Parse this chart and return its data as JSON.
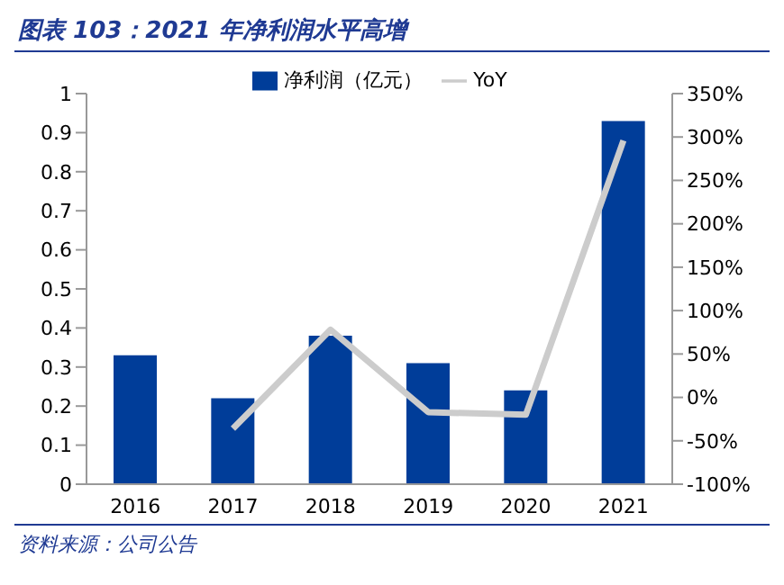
{
  "chart_data": {
    "type": "bar",
    "title": "图表 103：2021 年净利润水平高增",
    "categories": [
      "2016",
      "2017",
      "2018",
      "2019",
      "2020",
      "2021"
    ],
    "series": [
      {
        "name": "净利润（亿元）",
        "color": "#003d99",
        "values": [
          0.33,
          0.22,
          0.38,
          0.31,
          0.24,
          0.93
        ]
      },
      {
        "name": "YoY",
        "type": "line",
        "axis": "y2",
        "color": "#cccccc",
        "values": [
          null,
          -36,
          78,
          -17,
          -20,
          296
        ]
      }
    ],
    "ylim": [
      0,
      1
    ],
    "yticks": [
      0,
      {
        "value": 0.1,
        "label": "0.1"
      },
      {
        "value": 0.2,
        "label": "0.2"
      },
      {
        "value": 0.3,
        "label": "0.3"
      },
      {
        "value": 0.4,
        "label": "0.4"
      },
      {
        "value": 0.5,
        "label": "0.5"
      },
      {
        "value": 0.6,
        "label": "0.6"
      },
      {
        "value": 0.7,
        "label": "0.7"
      },
      {
        "value": 0.8,
        "label": "0.8"
      },
      {
        "value": 0.9,
        "label": "0.9"
      },
      1
    ],
    "y2lim": [
      -100,
      350
    ],
    "y2ticks": [
      {
        "value": -100,
        "label": "-100%"
      },
      {
        "value": -50,
        "label": "-50%"
      },
      {
        "value": 0,
        "label": "0%"
      },
      {
        "value": 50,
        "label": "50%"
      },
      {
        "value": 100,
        "label": "100%"
      },
      {
        "value": 150,
        "label": "150%"
      },
      {
        "value": 200,
        "label": "200%"
      },
      {
        "value": 250,
        "label": "250%"
      },
      {
        "value": 300,
        "label": "300%"
      },
      {
        "value": 350,
        "label": "350%"
      }
    ],
    "grid": false,
    "legend": "top",
    "marker": "none",
    "line_style": "solid",
    "annotations": [
      "资料来源：公司公告"
    ]
  }
}
